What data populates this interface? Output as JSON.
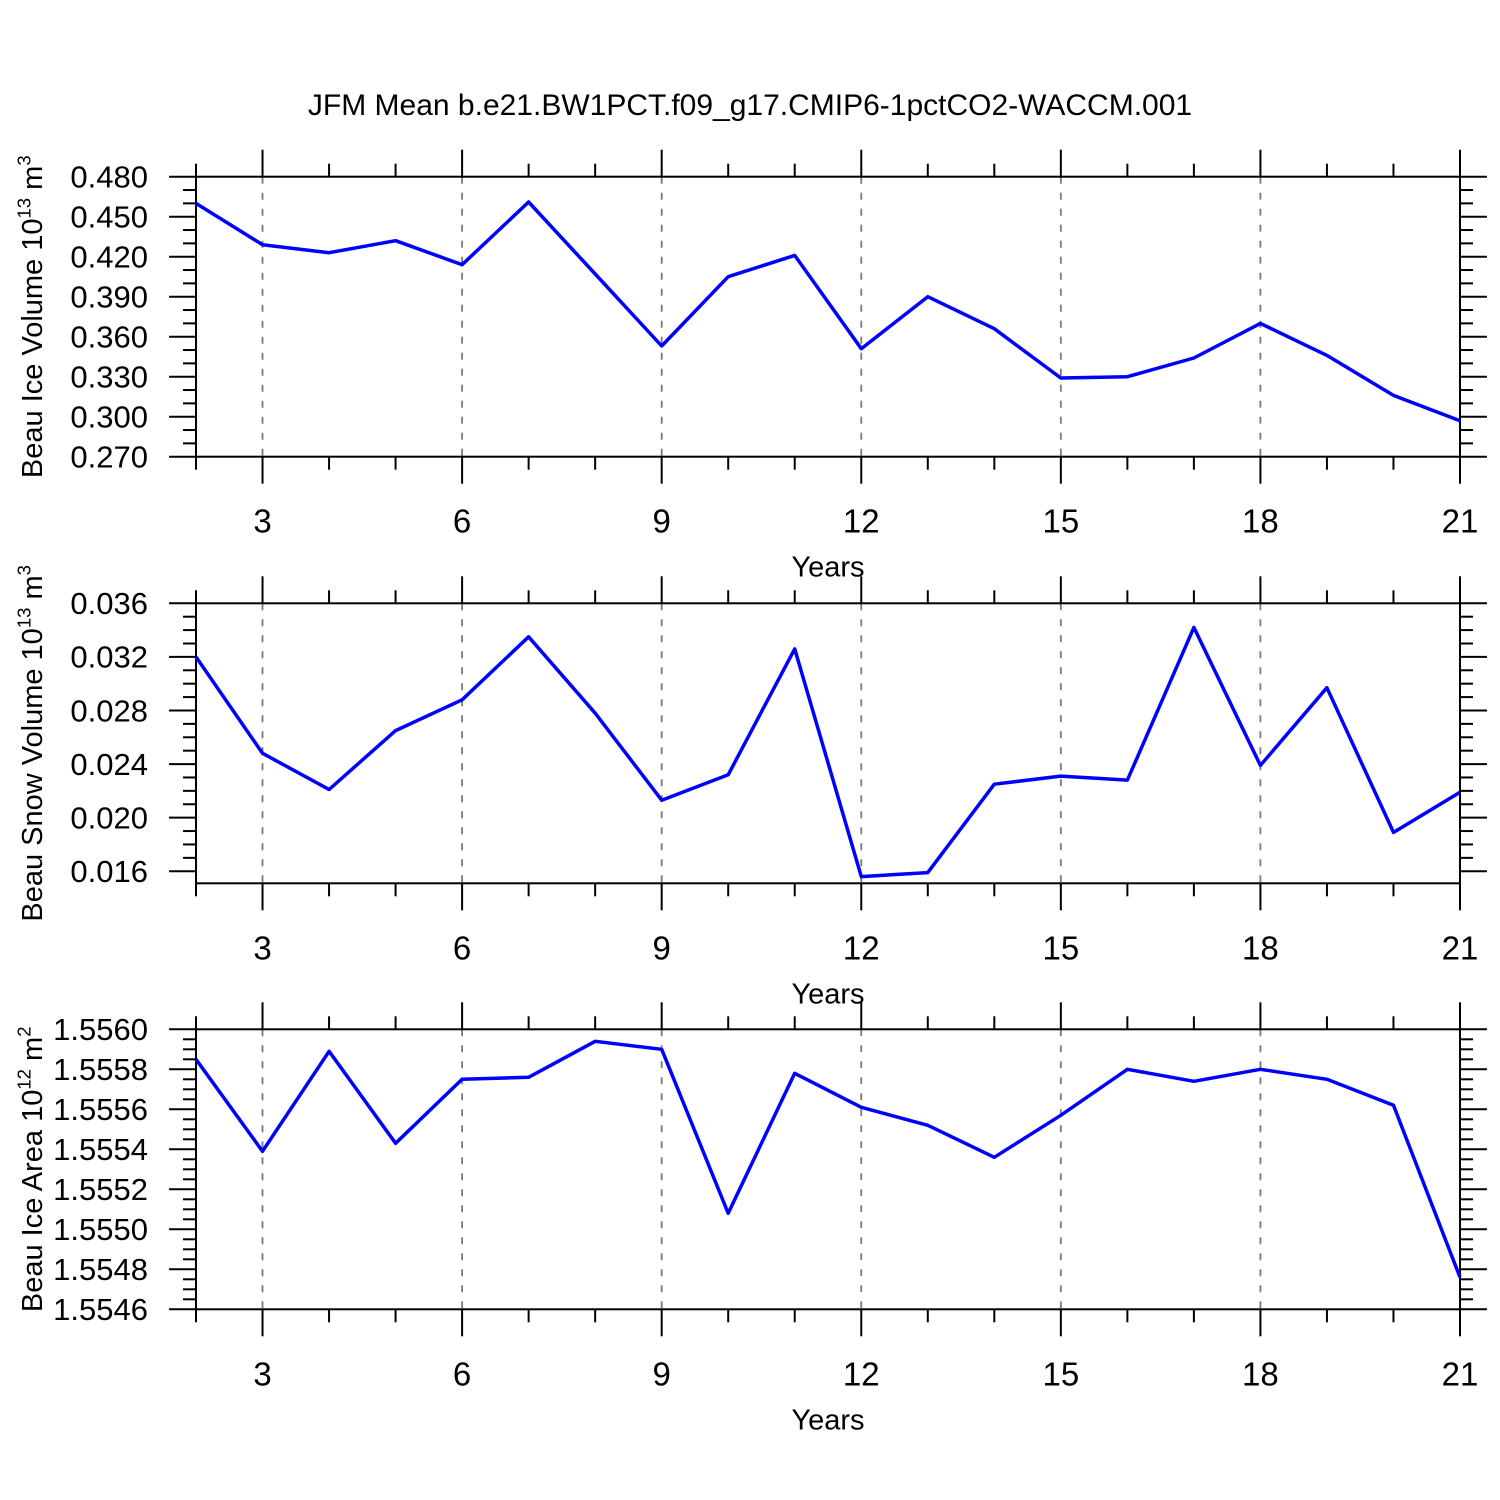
{
  "title": "JFM Mean b.e21.BW1PCT.f09_g17.CMIP6-1pctCO2-WACCM.001",
  "colors": {
    "line": "#0000ff",
    "axis": "#000000",
    "grid": "#7a7a7a",
    "background": "#ffffff"
  },
  "chart_data": [
    {
      "type": "line",
      "panel": "beau-ice-volume",
      "ylabel_parts": [
        {
          "t": "Beau Ice Volume 10"
        },
        {
          "t": "13",
          "sup": true
        },
        {
          "t": " m"
        },
        {
          "t": "3",
          "sup": true
        }
      ],
      "xlabel": "Years",
      "x": [
        2,
        3,
        4,
        5,
        6,
        7,
        8,
        9,
        10,
        11,
        12,
        13,
        14,
        15,
        16,
        17,
        18,
        19,
        20,
        21
      ],
      "values": [
        0.46,
        0.429,
        0.423,
        0.432,
        0.414,
        0.461,
        0.407,
        0.353,
        0.405,
        0.421,
        0.351,
        0.39,
        0.366,
        0.329,
        0.33,
        0.344,
        0.37,
        0.346,
        0.316,
        0.297
      ],
      "xlim": [
        2,
        21
      ],
      "ylim": [
        0.27,
        0.48
      ],
      "xticks": [
        {
          "v": 3,
          "l": "3"
        },
        {
          "v": 6,
          "l": "6"
        },
        {
          "v": 9,
          "l": "9"
        },
        {
          "v": 12,
          "l": "12"
        },
        {
          "v": 15,
          "l": "15"
        },
        {
          "v": 18,
          "l": "18"
        },
        {
          "v": 21,
          "l": "21"
        }
      ],
      "yticks": [
        {
          "v": 0.27,
          "l": "0.270"
        },
        {
          "v": 0.3,
          "l": "0.300"
        },
        {
          "v": 0.33,
          "l": "0.330"
        },
        {
          "v": 0.36,
          "l": "0.360"
        },
        {
          "v": 0.39,
          "l": "0.390"
        },
        {
          "v": 0.42,
          "l": "0.420"
        },
        {
          "v": 0.45,
          "l": "0.450"
        },
        {
          "v": 0.48,
          "l": "0.480"
        }
      ],
      "xtick_minor_step": 1,
      "ytick_minor_step": 0.01,
      "grid_x": [
        3,
        6,
        9,
        12,
        15,
        18
      ],
      "grid_on": "vertical-dashed",
      "legend": "none"
    },
    {
      "type": "line",
      "panel": "beau-snow-volume",
      "ylabel_parts": [
        {
          "t": "Beau Snow Volume 10"
        },
        {
          "t": "13",
          "sup": true
        },
        {
          "t": " m"
        },
        {
          "t": "3",
          "sup": true
        }
      ],
      "xlabel": "Years",
      "x": [
        2,
        3,
        4,
        5,
        6,
        7,
        8,
        9,
        10,
        11,
        12,
        13,
        14,
        15,
        16,
        17,
        18,
        19,
        20,
        21
      ],
      "values": [
        0.032,
        0.0248,
        0.0221,
        0.0265,
        0.0288,
        0.0335,
        0.0278,
        0.0213,
        0.0232,
        0.0326,
        0.0156,
        0.0159,
        0.0225,
        0.0231,
        0.0228,
        0.0342,
        0.0239,
        0.0297,
        0.0189,
        0.0219
      ],
      "xlim": [
        2,
        21
      ],
      "ylim": [
        0.0151,
        0.036
      ],
      "xticks": [
        {
          "v": 3,
          "l": "3"
        },
        {
          "v": 6,
          "l": "6"
        },
        {
          "v": 9,
          "l": "9"
        },
        {
          "v": 12,
          "l": "12"
        },
        {
          "v": 15,
          "l": "15"
        },
        {
          "v": 18,
          "l": "18"
        },
        {
          "v": 21,
          "l": "21"
        }
      ],
      "yticks": [
        {
          "v": 0.016,
          "l": "0.016"
        },
        {
          "v": 0.02,
          "l": "0.020"
        },
        {
          "v": 0.024,
          "l": "0.024"
        },
        {
          "v": 0.028,
          "l": "0.028"
        },
        {
          "v": 0.032,
          "l": "0.032"
        },
        {
          "v": 0.036,
          "l": "0.036"
        }
      ],
      "xtick_minor_step": 1,
      "ytick_minor_step": 0.001,
      "grid_x": [
        3,
        6,
        9,
        12,
        15,
        18
      ],
      "grid_on": "vertical-dashed",
      "legend": "none"
    },
    {
      "type": "line",
      "panel": "beau-ice-area",
      "ylabel_parts": [
        {
          "t": "Beau Ice Area 10"
        },
        {
          "t": "12",
          "sup": true
        },
        {
          "t": " m"
        },
        {
          "t": "2",
          "sup": true
        }
      ],
      "xlabel": "Years",
      "x": [
        2,
        3,
        4,
        5,
        6,
        7,
        8,
        9,
        10,
        11,
        12,
        13,
        14,
        15,
        16,
        17,
        18,
        19,
        20,
        21
      ],
      "values": [
        1.55585,
        1.55539,
        1.55589,
        1.55543,
        1.55575,
        1.55576,
        1.55594,
        1.5559,
        1.55508,
        1.55578,
        1.55561,
        1.55552,
        1.55536,
        1.55557,
        1.5558,
        1.55574,
        1.5558,
        1.55575,
        1.55562,
        1.55476
      ],
      "xlim": [
        2,
        21
      ],
      "ylim": [
        1.5546,
        1.556
      ],
      "xticks": [
        {
          "v": 3,
          "l": "3"
        },
        {
          "v": 6,
          "l": "6"
        },
        {
          "v": 9,
          "l": "9"
        },
        {
          "v": 12,
          "l": "12"
        },
        {
          "v": 15,
          "l": "15"
        },
        {
          "v": 18,
          "l": "18"
        },
        {
          "v": 21,
          "l": "21"
        }
      ],
      "yticks": [
        {
          "v": 1.5546,
          "l": "1.5546"
        },
        {
          "v": 1.5548,
          "l": "1.5548"
        },
        {
          "v": 1.555,
          "l": "1.5550"
        },
        {
          "v": 1.5552,
          "l": "1.5552"
        },
        {
          "v": 1.5554,
          "l": "1.5554"
        },
        {
          "v": 1.5556,
          "l": "1.5556"
        },
        {
          "v": 1.5558,
          "l": "1.5558"
        },
        {
          "v": 1.556,
          "l": "1.5560"
        }
      ],
      "xtick_minor_step": 1,
      "ytick_minor_step": 5e-05,
      "grid_x": [
        3,
        6,
        9,
        12,
        15,
        18
      ],
      "grid_on": "vertical-dashed",
      "legend": "none"
    }
  ]
}
